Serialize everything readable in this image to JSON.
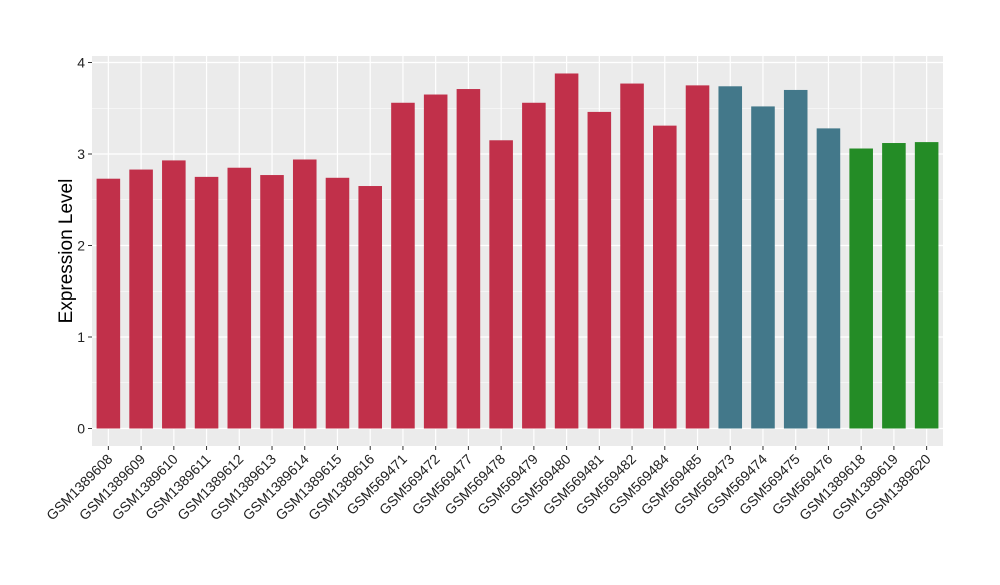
{
  "chart_data": {
    "type": "bar",
    "title": "",
    "xlabel": "",
    "ylabel": "Expression Level",
    "ylim": [
      -0.1,
      4.05
    ],
    "yticks": [
      0,
      1,
      2,
      3,
      4
    ],
    "grid": true,
    "legend": "none",
    "categories": [
      "GSM1389608",
      "GSM1389609",
      "GSM1389610",
      "GSM1389611",
      "GSM1389612",
      "GSM1389613",
      "GSM1389614",
      "GSM1389615",
      "GSM1389616",
      "GSM569471",
      "GSM569472",
      "GSM569477",
      "GSM569478",
      "GSM569479",
      "GSM569480",
      "GSM569481",
      "GSM569482",
      "GSM569484",
      "GSM569485",
      "GSM569473",
      "GSM569474",
      "GSM569475",
      "GSM569476",
      "GSM1389618",
      "GSM1389619",
      "GSM1389620"
    ],
    "values": [
      2.73,
      2.83,
      2.93,
      2.75,
      2.85,
      2.77,
      2.94,
      2.74,
      2.65,
      3.56,
      3.65,
      3.71,
      3.15,
      3.56,
      3.88,
      3.46,
      3.77,
      3.31,
      3.75,
      3.74,
      3.52,
      3.7,
      3.28,
      3.06,
      3.12,
      3.13
    ],
    "bar_colors": [
      "#c1304a",
      "#c1304a",
      "#c1304a",
      "#c1304a",
      "#c1304a",
      "#c1304a",
      "#c1304a",
      "#c1304a",
      "#c1304a",
      "#c1304a",
      "#c1304a",
      "#c1304a",
      "#c1304a",
      "#c1304a",
      "#c1304a",
      "#c1304a",
      "#c1304a",
      "#c1304a",
      "#c1304a",
      "#43788a",
      "#43788a",
      "#43788a",
      "#43788a",
      "#248c26",
      "#248c26",
      "#248c26"
    ],
    "panel_background": "#ebebeb",
    "grid_color": "#ffffff"
  }
}
